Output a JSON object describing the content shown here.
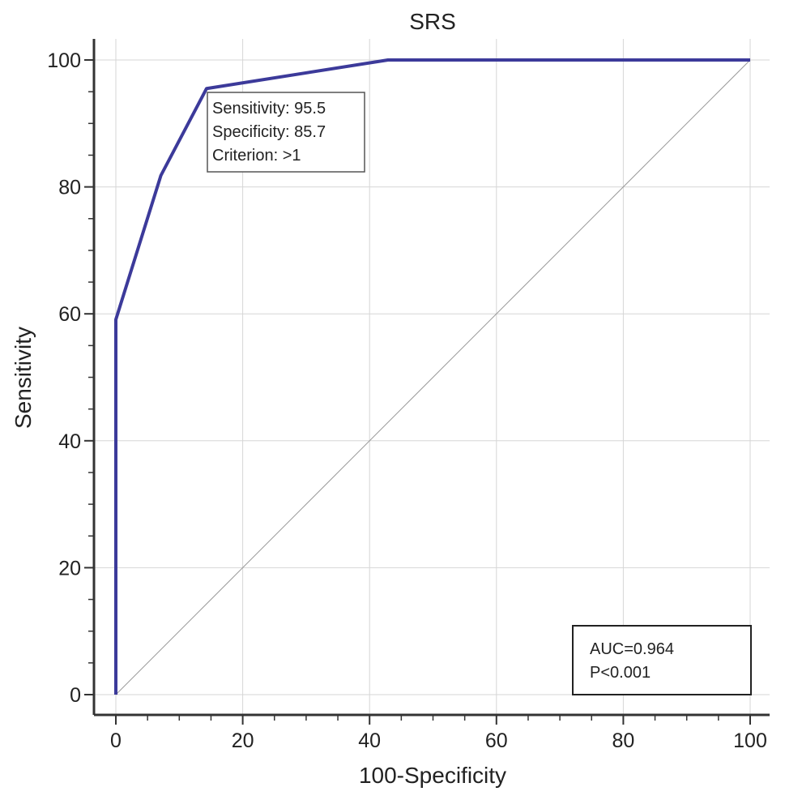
{
  "chart_data": {
    "type": "line",
    "title": "SRS",
    "xlabel": "100-Specificity",
    "ylabel": "Sensitivity",
    "xlim": [
      0,
      100
    ],
    "ylim": [
      0,
      100
    ],
    "xticks": [
      "0",
      "20",
      "40",
      "60",
      "80",
      "100"
    ],
    "yticks": [
      "0",
      "20",
      "40",
      "60",
      "80",
      "100"
    ],
    "grid": true,
    "series": [
      {
        "color": "#3c3a9a",
        "x": [
          0,
          0,
          7.1,
          14.3,
          42.9,
          100
        ],
        "y": [
          0,
          59.1,
          81.8,
          95.5,
          100,
          100
        ]
      }
    ],
    "reference_line": {
      "x": [
        0,
        100
      ],
      "y": [
        0,
        100
      ],
      "color": "#9a9a9a"
    },
    "annotations": {
      "cutoff": [
        "Sensitivity: 95.5",
        "Specificity: 85.7",
        "Criterion: >1"
      ],
      "stats": [
        "AUC=0.964",
        "P<0.001"
      ]
    }
  }
}
